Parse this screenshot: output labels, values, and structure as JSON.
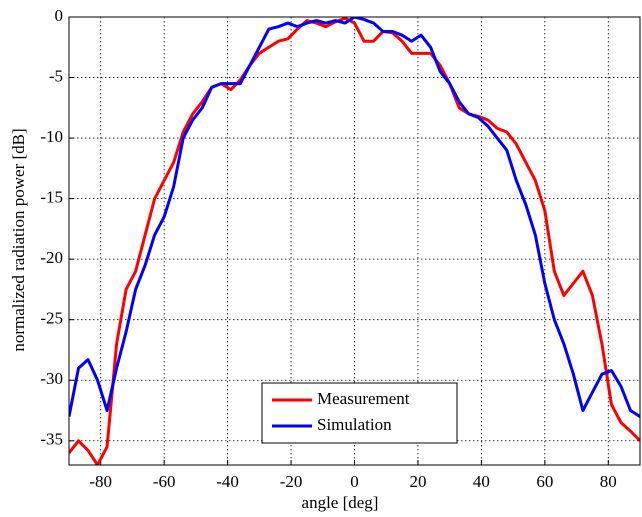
{
  "chart_data": {
    "type": "line",
    "xlabel": "angle [deg]",
    "ylabel": "normalized radiation power [dB]",
    "x": [
      -90,
      -87,
      -84,
      -81,
      -78,
      -75,
      -72,
      -69,
      -66,
      -63,
      -60,
      -57,
      -54,
      -51,
      -48,
      -45,
      -42,
      -39,
      -36,
      -33,
      -30,
      -27,
      -24,
      -21,
      -18,
      -15,
      -12,
      -9,
      -6,
      -3,
      0,
      3,
      6,
      9,
      12,
      15,
      18,
      21,
      24,
      27,
      30,
      33,
      36,
      39,
      42,
      45,
      48,
      51,
      54,
      57,
      60,
      63,
      66,
      69,
      72,
      75,
      78,
      81,
      84,
      87,
      90
    ],
    "series": [
      {
        "name": "Measurement",
        "color": "#ff0000",
        "values": [
          -36,
          -35,
          -35.8,
          -37,
          -35.5,
          -27,
          -22.5,
          -21,
          -18,
          -15,
          -13.5,
          -12,
          -9.5,
          -8,
          -7,
          -5.8,
          -5.5,
          -6,
          -5.2,
          -4,
          -3,
          -2.5,
          -2,
          -1.8,
          -1,
          -0.3,
          -0.5,
          -0.8,
          -0.4,
          -0.1,
          -0.5,
          -2,
          -2,
          -1.2,
          -1.3,
          -2,
          -3,
          -3,
          -3,
          -4,
          -5.5,
          -7.5,
          -8,
          -8.2,
          -8.5,
          -9.2,
          -9.5,
          -10.5,
          -12,
          -13.5,
          -16,
          -21,
          -23,
          -22,
          -21,
          -23,
          -27,
          -32,
          -33.5,
          -34.2,
          -35
        ]
      },
      {
        "name": "Simulation",
        "color": "#0000ff",
        "values": [
          -33,
          -29,
          -28.3,
          -30,
          -32.5,
          -29,
          -26,
          -22.5,
          -20.5,
          -18,
          -16.5,
          -14,
          -10,
          -8.5,
          -7.5,
          -5.8,
          -5.5,
          -5.5,
          -5.5,
          -4,
          -2.5,
          -1,
          -0.8,
          -0.5,
          -0.8,
          -0.5,
          -0.3,
          -0.5,
          -0.3,
          -0.5,
          0,
          -0.2,
          -0.5,
          -1.2,
          -1.2,
          -1.5,
          -2,
          -1.5,
          -2.5,
          -4.5,
          -5.5,
          -7,
          -8,
          -8.3,
          -9,
          -10,
          -11,
          -13.5,
          -15.5,
          -18,
          -22,
          -25,
          -27,
          -29.5,
          -32.5,
          -31,
          -29.5,
          -29.2,
          -30.5,
          -32.5,
          -33
        ]
      }
    ],
    "xlim": [
      -90,
      90
    ],
    "ylim": [
      -37,
      0
    ],
    "xticks": [
      -80,
      -60,
      -40,
      -20,
      0,
      20,
      40,
      60,
      80
    ],
    "yticks": [
      0,
      -5,
      -10,
      -15,
      -20,
      -25,
      -30,
      -35
    ],
    "grid": true,
    "legend": "lower center"
  }
}
